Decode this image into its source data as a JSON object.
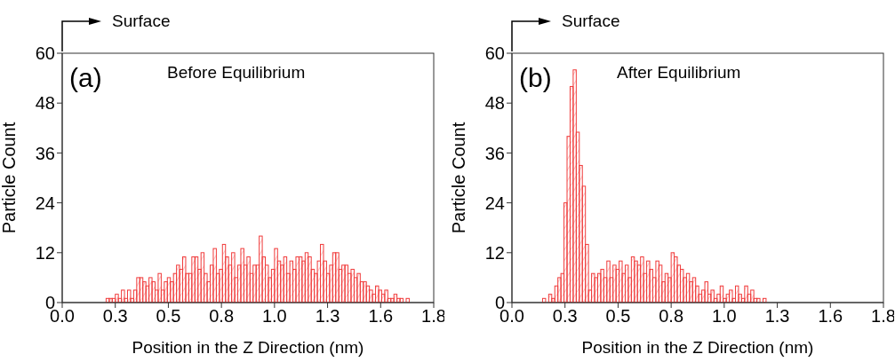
{
  "chart_data": [
    {
      "type": "histogram",
      "xlabel": "Position in the Z Direction (nm)",
      "ylabel": "Particle Count",
      "annotations": [
        "Surface",
        "(a)",
        "Before Equilibrium"
      ],
      "color": "#f03c3c",
      "bins": [
        0.2,
        0.215,
        0.23,
        0.245,
        0.26,
        0.275,
        0.29,
        0.305,
        0.32,
        0.335,
        0.35,
        0.365,
        0.38,
        0.395,
        0.41,
        0.425,
        0.44,
        0.455,
        0.47,
        0.485,
        0.5,
        0.515,
        0.53,
        0.545,
        0.56,
        0.575,
        0.59,
        0.605,
        0.62,
        0.635,
        0.65,
        0.665,
        0.68,
        0.695,
        0.71,
        0.725,
        0.74,
        0.755,
        0.77,
        0.785,
        0.8,
        0.815,
        0.83,
        0.845,
        0.86,
        0.875,
        0.89,
        0.905,
        0.92,
        0.935,
        0.95,
        0.965,
        0.98,
        0.995,
        1.01,
        1.025,
        1.04,
        1.055,
        1.07,
        1.085,
        1.1,
        1.115,
        1.13,
        1.145,
        1.16,
        1.175,
        1.19,
        1.205,
        1.22,
        1.235,
        1.25,
        1.265,
        1.28,
        1.295,
        1.31,
        1.325,
        1.34,
        1.355,
        1.37,
        1.385,
        1.4,
        1.415,
        1.43,
        1.445,
        1.46,
        1.475,
        1.49,
        1.505,
        1.52,
        1.535,
        1.55,
        1.565,
        1.58,
        1.595,
        1.61,
        1.625,
        1.64,
        1.655,
        1.67,
        1.685,
        1.7
      ],
      "values": [
        0,
        1,
        1,
        1,
        2,
        1,
        3,
        1,
        3,
        1,
        3,
        6,
        6,
        5,
        4,
        6,
        5,
        3,
        7,
        3,
        5,
        6,
        5,
        7,
        9,
        8,
        11,
        7,
        7,
        11,
        11,
        8,
        12,
        7,
        5,
        9,
        13,
        7,
        8,
        14,
        11,
        9,
        12,
        6,
        9,
        13,
        9,
        11,
        7,
        9,
        9,
        16,
        11,
        9,
        6,
        8,
        13,
        10,
        9,
        11,
        7,
        10,
        8,
        11,
        11,
        10,
        12,
        11,
        8,
        7,
        10,
        14,
        10,
        7,
        9,
        12,
        12,
        8,
        9,
        9,
        7,
        8,
        6,
        7,
        5,
        5,
        4,
        3,
        2,
        4,
        3,
        2,
        3,
        1,
        1,
        2,
        1,
        1,
        0,
        1
      ],
      "xlim": [
        0,
        1.82
      ],
      "xticks": [
        {
          "value": 0,
          "label": "0.0"
        },
        {
          "value": 0.26,
          "label": "0.3"
        },
        {
          "value": 0.52,
          "label": "0.5"
        },
        {
          "value": 0.78,
          "label": "0.8"
        },
        {
          "value": 1.04,
          "label": "1.0"
        },
        {
          "value": 1.3,
          "label": "1.3"
        },
        {
          "value": 1.56,
          "label": "1.6"
        },
        {
          "value": 1.82,
          "label": "1.8"
        }
      ],
      "ylim": [
        0,
        60
      ],
      "yticks": [
        0,
        12,
        24,
        36,
        48,
        60
      ]
    },
    {
      "type": "histogram",
      "xlabel": "Position in the Z Direction (nm)",
      "ylabel": "Particle Count",
      "annotations": [
        "Surface",
        "(b)",
        "After Equilibrium"
      ],
      "color": "#f03c3c",
      "bins": [
        0.15,
        0.165,
        0.18,
        0.195,
        0.21,
        0.225,
        0.24,
        0.255,
        0.27,
        0.285,
        0.3,
        0.315,
        0.33,
        0.345,
        0.36,
        0.375,
        0.39,
        0.405,
        0.42,
        0.435,
        0.45,
        0.465,
        0.48,
        0.495,
        0.51,
        0.525,
        0.54,
        0.555,
        0.57,
        0.585,
        0.6,
        0.615,
        0.63,
        0.645,
        0.66,
        0.675,
        0.69,
        0.705,
        0.72,
        0.735,
        0.75,
        0.765,
        0.78,
        0.795,
        0.81,
        0.825,
        0.84,
        0.855,
        0.87,
        0.885,
        0.9,
        0.915,
        0.93,
        0.945,
        0.96,
        0.975,
        0.99,
        1.005,
        1.02,
        1.035,
        1.05,
        1.065,
        1.08,
        1.095,
        1.11,
        1.125,
        1.14,
        1.155,
        1.17,
        1.185,
        1.2,
        1.215,
        1.23,
        1.245,
        1.26
      ],
      "values": [
        1,
        0,
        2,
        1,
        4,
        6,
        7,
        24,
        40,
        52,
        56,
        41,
        33,
        28,
        14,
        3,
        7,
        6,
        7,
        8,
        6,
        10,
        6,
        9,
        8,
        10,
        7,
        9,
        6,
        11,
        10,
        9,
        11,
        7,
        10,
        8,
        6,
        10,
        9,
        5,
        7,
        6,
        12,
        11,
        9,
        8,
        6,
        7,
        5,
        6,
        4,
        2,
        3,
        5,
        2,
        3,
        1,
        2,
        4,
        1,
        2,
        3,
        1,
        4,
        2,
        1,
        4,
        2,
        3,
        1,
        1,
        0,
        1,
        0
      ],
      "xlim": [
        0,
        1.82
      ],
      "xticks": [
        {
          "value": 0,
          "label": "0.0"
        },
        {
          "value": 0.26,
          "label": "0.3"
        },
        {
          "value": 0.52,
          "label": "0.5"
        },
        {
          "value": 0.78,
          "label": "0.8"
        },
        {
          "value": 1.04,
          "label": "1.0"
        },
        {
          "value": 1.3,
          "label": "1.3"
        },
        {
          "value": 1.56,
          "label": "1.6"
        },
        {
          "value": 1.82,
          "label": "1.8"
        }
      ],
      "ylim": [
        0,
        60
      ],
      "yticks": [
        0,
        12,
        24,
        36,
        48,
        60
      ]
    }
  ]
}
